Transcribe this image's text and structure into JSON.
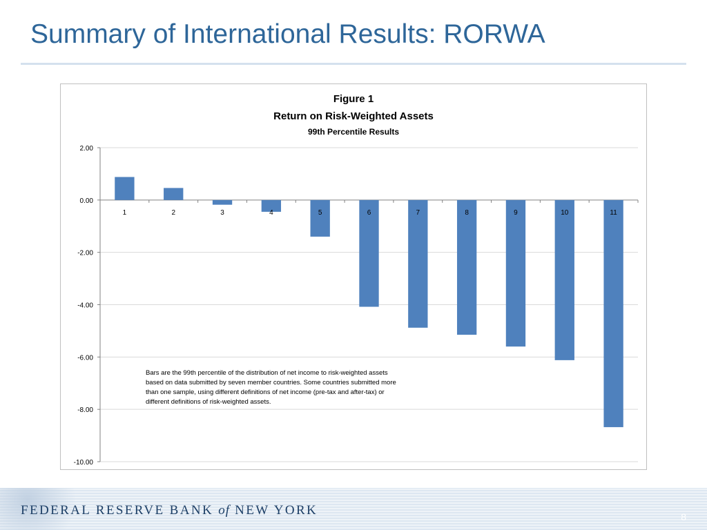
{
  "slide": {
    "title": "Summary of International Results:  RORWA",
    "page_number": "8"
  },
  "footer": {
    "bank_part1": "FEDERAL RESERVE BANK ",
    "bank_of": "of",
    "bank_part2": " NEW YORK"
  },
  "colors": {
    "title": "#2e6699",
    "bar": "#4f81bd",
    "gridline": "#d9d9d9"
  },
  "chart_data": {
    "type": "bar",
    "title": "Figure 1",
    "subtitle": "Return on Risk-Weighted Assets",
    "subtitle2": "99th Percentile Results",
    "xlabel": "",
    "ylabel": "",
    "categories": [
      "1",
      "2",
      "3",
      "4",
      "5",
      "6",
      "7",
      "8",
      "9",
      "10",
      "11"
    ],
    "values": [
      0.88,
      0.46,
      -0.18,
      -0.45,
      -1.4,
      -4.08,
      -4.88,
      -5.15,
      -5.6,
      -6.12,
      -8.68
    ],
    "ylim": [
      -10,
      2
    ],
    "yticks": [
      "2.00",
      "0.00",
      "-2.00",
      "-4.00",
      "-6.00",
      "-8.00",
      "-10.00"
    ],
    "grid": true,
    "legend": "none",
    "annotation": [
      "Bars are the 99th percentile of the distribution of net income to risk-weighted assets",
      "based on data submitted by seven member countries.  Some countries submitted more",
      "than one sample, using different definitions of net income (pre-tax and after-tax) or",
      "different definitions of risk-weighted assets."
    ]
  }
}
